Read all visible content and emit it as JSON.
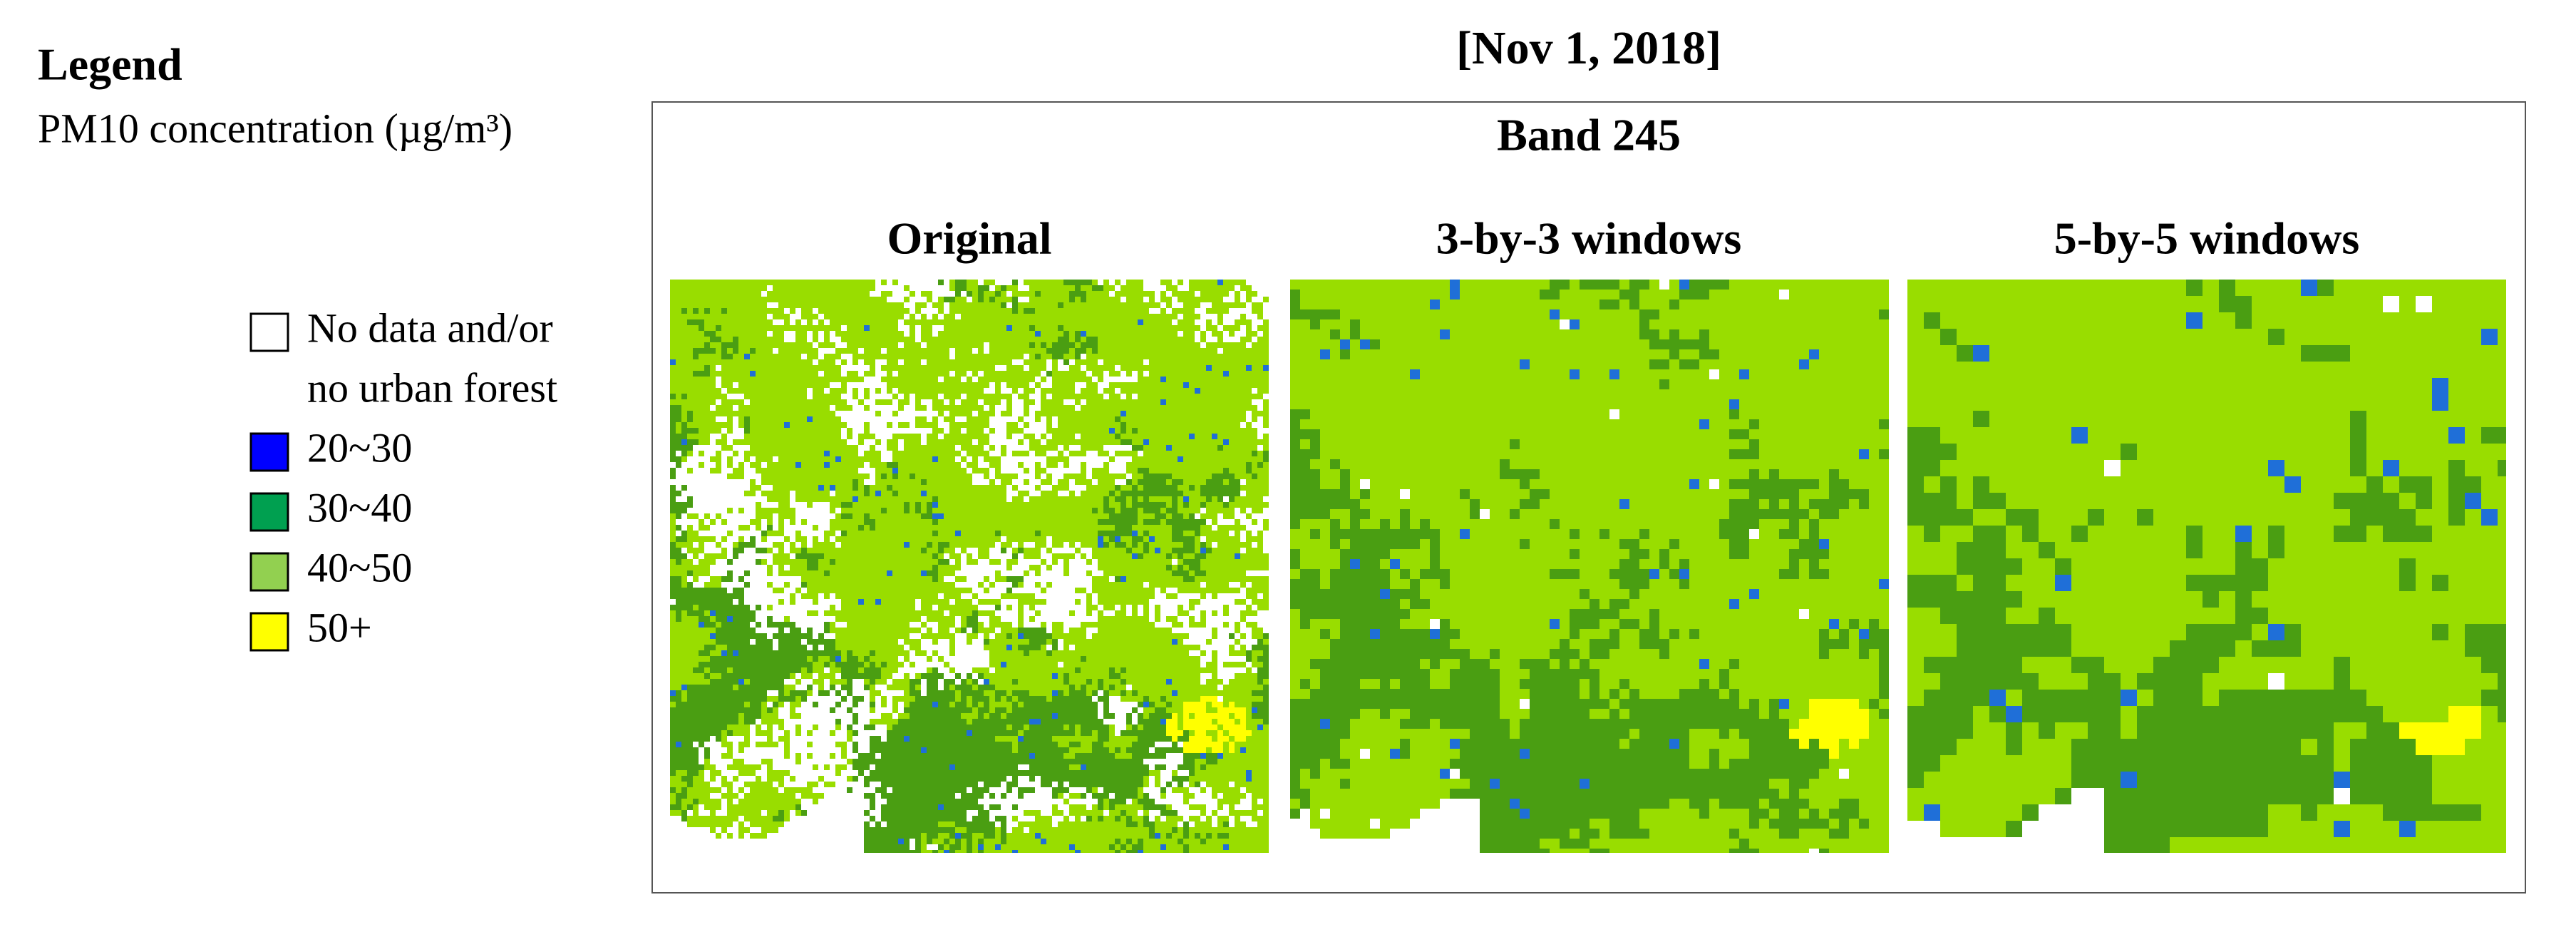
{
  "legend": {
    "title": "Legend",
    "subtitle": "PM10 concentration (µg/m³)",
    "items": [
      {
        "label": [
          "No data and/or",
          "no urban forest"
        ],
        "color": "#ffffff"
      },
      {
        "label": "20~30",
        "color": "#0000ff"
      },
      {
        "label": "30~40",
        "color": "#00a050"
      },
      {
        "label": "40~50",
        "color": "#92d050"
      },
      {
        "label": "50+",
        "color": "#ffff00"
      }
    ]
  },
  "figure": {
    "title": "[Nov 1, 2018]",
    "band": "Band 245",
    "panels": [
      "Original",
      "3-by-3 windows",
      "5-by-5 windows"
    ]
  }
}
